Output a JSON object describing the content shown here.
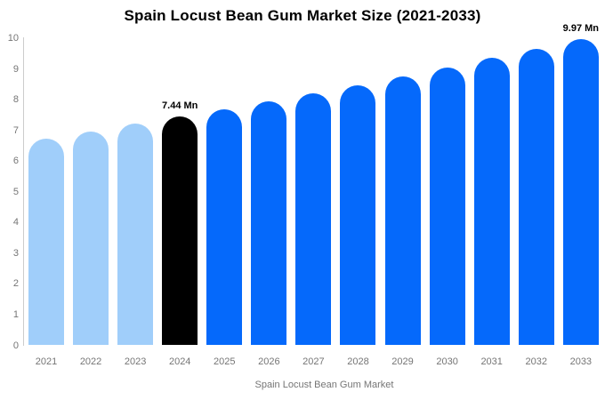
{
  "chart_data": {
    "type": "bar",
    "title": "Spain Locust Bean Gum Market Size (2021-2033)",
    "unit": "Mn",
    "categories": [
      "2021",
      "2022",
      "2023",
      "2024",
      "2025",
      "2026",
      "2027",
      "2028",
      "2029",
      "2030",
      "2031",
      "2032",
      "2033"
    ],
    "values": [
      6.74,
      6.97,
      7.21,
      7.44,
      7.69,
      7.94,
      8.21,
      8.48,
      8.76,
      9.05,
      9.35,
      9.65,
      9.97
    ],
    "bar_colors": [
      "#A0CEFA",
      "#A0CEFA",
      "#A0CEFA",
      "#000000",
      "#0569FB",
      "#0569FB",
      "#0569FB",
      "#0569FB",
      "#0569FB",
      "#0569FB",
      "#0569FB",
      "#0569FB",
      "#0569FB"
    ],
    "xlabel": "",
    "ylabel": "",
    "ylim": [
      0,
      10
    ],
    "ytick_step": 1,
    "grid": false,
    "legend_position": "bottom",
    "annotations": [
      {
        "category": "2024",
        "text": "7.44 Mn"
      },
      {
        "category": "2033",
        "text": "9.97 Mn"
      }
    ]
  },
  "legend": {
    "label": "Spain Locust Bean Gum Market",
    "swatch_color": "#A0CEFA"
  },
  "colors": {
    "background": "#FFFFFF",
    "axis_line": "#CCCCCC",
    "tick_text": "#757575",
    "title_text": "#000000",
    "historical_bar": "#A0CEFA",
    "current_bar": "#000000",
    "forecast_bar": "#0569FB"
  }
}
